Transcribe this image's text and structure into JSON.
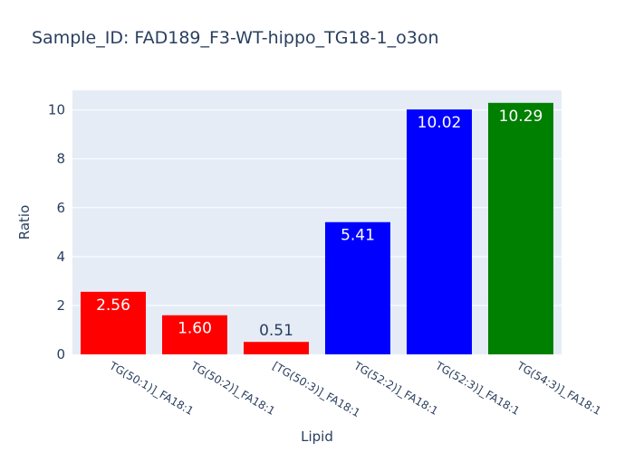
{
  "chart_data": {
    "type": "bar",
    "title": "Sample_ID: FAD189_F3-WT-hippo_TG18-1_o3on",
    "xlabel": "Lipid",
    "ylabel": "Ratio",
    "ylim": [
      0,
      10.8
    ],
    "yticks": [
      0,
      2,
      4,
      6,
      8,
      10
    ],
    "grid": true,
    "categories": [
      "TG(50:1)]_FA18:1",
      "TG(50:2)]_FA18:1",
      "[TG(50:3)]_FA18:1",
      "TG(52:2)]_FA18:1",
      "TG(52:3)]_FA18:1",
      "TG(54:3)]_FA18:1"
    ],
    "values": [
      2.56,
      1.6,
      0.51,
      5.41,
      10.02,
      10.29
    ],
    "value_labels": [
      "2.56",
      "1.60",
      "0.51",
      "5.41",
      "10.02",
      "10.29"
    ],
    "colors": [
      "#ff0000",
      "#ff0000",
      "#ff0000",
      "#0000ff",
      "#0000ff",
      "#008000"
    ],
    "plot_background": "#e5ecf6"
  }
}
